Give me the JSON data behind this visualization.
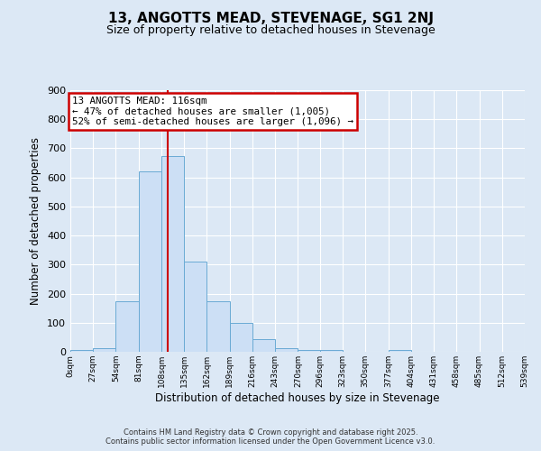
{
  "title": "13, ANGOTTS MEAD, STEVENAGE, SG1 2NJ",
  "subtitle": "Size of property relative to detached houses in Stevenage",
  "xlabel": "Distribution of detached houses by size in Stevenage",
  "ylabel": "Number of detached properties",
  "bin_edges": [
    0,
    27,
    54,
    81,
    108,
    135,
    162,
    189,
    216,
    243,
    270,
    296,
    323,
    350,
    377,
    404,
    431,
    458,
    485,
    512,
    539
  ],
  "bar_heights": [
    5,
    12,
    175,
    620,
    675,
    310,
    175,
    100,
    42,
    12,
    5,
    5,
    0,
    0,
    5,
    0,
    0,
    0,
    0,
    0
  ],
  "bar_color": "#ccdff5",
  "bar_edgecolor": "#6aaad4",
  "vline_x": 116,
  "vline_color": "#cc0000",
  "ylim": [
    0,
    900
  ],
  "yticks": [
    0,
    100,
    200,
    300,
    400,
    500,
    600,
    700,
    800,
    900
  ],
  "bg_color": "#dce8f5",
  "grid_color": "#ffffff",
  "annotation_title": "13 ANGOTTS MEAD: 116sqm",
  "annotation_line1": "← 47% of detached houses are smaller (1,005)",
  "annotation_line2": "52% of semi-detached houses are larger (1,096) →",
  "annotation_box_color": "#cc0000",
  "footer1": "Contains HM Land Registry data © Crown copyright and database right 2025.",
  "footer2": "Contains public sector information licensed under the Open Government Licence v3.0.",
  "tick_labels": [
    "0sqm",
    "27sqm",
    "54sqm",
    "81sqm",
    "108sqm",
    "135sqm",
    "162sqm",
    "189sqm",
    "216sqm",
    "243sqm",
    "270sqm",
    "296sqm",
    "323sqm",
    "350sqm",
    "377sqm",
    "404sqm",
    "431sqm",
    "458sqm",
    "485sqm",
    "512sqm",
    "539sqm"
  ]
}
